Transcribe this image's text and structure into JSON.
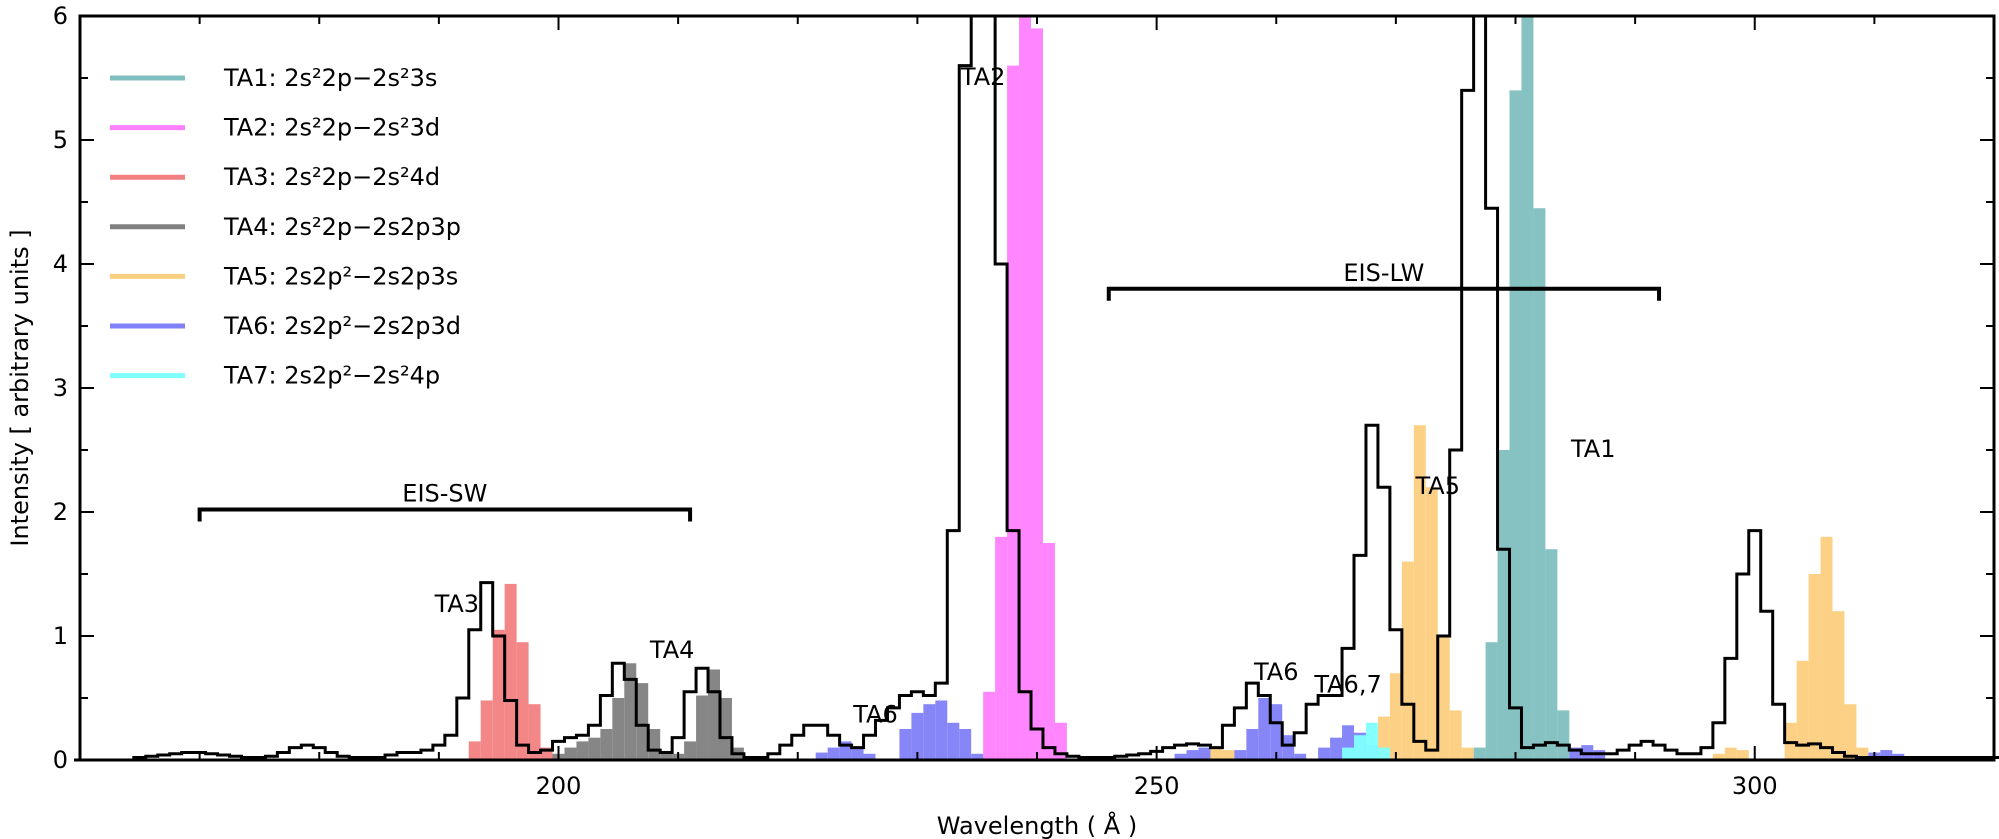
{
  "chart_data": {
    "type": "area",
    "xlabel": "Wavelength ( Å )",
    "ylabel": "Intensity [ arbitrary units ]",
    "xlim": [
      160,
      320
    ],
    "ylim": [
      0,
      6
    ],
    "x_ticks": [
      200,
      250,
      300
    ],
    "y_ticks": [
      0,
      1,
      2,
      3,
      4,
      5,
      6
    ],
    "grid": false,
    "legend_position": "top-left",
    "step_width": 1,
    "series": [
      {
        "name": "TA1: 2s²2p−2s²3s",
        "color": "#80bfbf",
        "points": [
          [
            277,
            0.1
          ],
          [
            278,
            0.95
          ],
          [
            279,
            2.5
          ],
          [
            280,
            5.4
          ],
          [
            281,
            6.0
          ],
          [
            282,
            4.45
          ],
          [
            283,
            1.7
          ],
          [
            284,
            0.4
          ]
        ]
      },
      {
        "name": "TA2: 2s²2p−2s²3d",
        "color": "#ff80ff",
        "points": [
          [
            236,
            0.55
          ],
          [
            237,
            1.8
          ],
          [
            238,
            5.6
          ],
          [
            239,
            6.0
          ],
          [
            240,
            5.9
          ],
          [
            241,
            1.75
          ],
          [
            242,
            0.3
          ]
        ]
      },
      {
        "name": "TA3: 2s²2p−2s²4d",
        "color": "#f28080",
        "points": [
          [
            193,
            0.15
          ],
          [
            194,
            0.48
          ],
          [
            195,
            1.05
          ],
          [
            196,
            1.42
          ],
          [
            197,
            0.95
          ],
          [
            198,
            0.45
          ],
          [
            199,
            0.1
          ]
        ]
      },
      {
        "name": "TA4: 2s²2p−2s2p3p",
        "color": "#808080",
        "points": [
          [
            200,
            0.05
          ],
          [
            201,
            0.1
          ],
          [
            202,
            0.15
          ],
          [
            203,
            0.18
          ],
          [
            204,
            0.25
          ],
          [
            205,
            0.5
          ],
          [
            206,
            0.78
          ],
          [
            207,
            0.62
          ],
          [
            208,
            0.25
          ],
          [
            209,
            0.05
          ],
          [
            210,
            0.05
          ],
          [
            211,
            0.15
          ],
          [
            212,
            0.52
          ],
          [
            213,
            0.73
          ],
          [
            214,
            0.5
          ],
          [
            215,
            0.1
          ]
        ]
      },
      {
        "name": "TA5: 2s2p²−2s2p3s",
        "color": "#fccf80",
        "points": [
          [
            254,
            0.05
          ],
          [
            255,
            0.1
          ],
          [
            256,
            0.08
          ],
          [
            269,
            0.35
          ],
          [
            270,
            0.7
          ],
          [
            271,
            1.6
          ],
          [
            272,
            2.7
          ],
          [
            273,
            2.2
          ],
          [
            274,
            1.0
          ],
          [
            275,
            0.4
          ],
          [
            276,
            0.1
          ],
          [
            297,
            0.05
          ],
          [
            298,
            0.1
          ],
          [
            299,
            0.08
          ],
          [
            303,
            0.3
          ],
          [
            304,
            0.8
          ],
          [
            305,
            1.5
          ],
          [
            306,
            1.8
          ],
          [
            307,
            1.2
          ],
          [
            308,
            0.45
          ],
          [
            309,
            0.1
          ]
        ]
      },
      {
        "name": "TA6: 2s2p²−2s2p3d",
        "color": "#8080f8",
        "points": [
          [
            222,
            0.06
          ],
          [
            223,
            0.1
          ],
          [
            224,
            0.15
          ],
          [
            225,
            0.1
          ],
          [
            226,
            0.05
          ],
          [
            229,
            0.25
          ],
          [
            230,
            0.38
          ],
          [
            231,
            0.45
          ],
          [
            232,
            0.48
          ],
          [
            233,
            0.3
          ],
          [
            234,
            0.25
          ],
          [
            235,
            0.05
          ],
          [
            252,
            0.05
          ],
          [
            253,
            0.08
          ],
          [
            254,
            0.1
          ],
          [
            257,
            0.08
          ],
          [
            258,
            0.25
          ],
          [
            259,
            0.5
          ],
          [
            260,
            0.45
          ],
          [
            261,
            0.2
          ],
          [
            262,
            0.05
          ],
          [
            264,
            0.1
          ],
          [
            265,
            0.18
          ],
          [
            266,
            0.28
          ],
          [
            267,
            0.22
          ],
          [
            268,
            0.12
          ],
          [
            285,
            0.1
          ],
          [
            286,
            0.12
          ],
          [
            287,
            0.08
          ],
          [
            310,
            0.06
          ],
          [
            311,
            0.08
          ],
          [
            312,
            0.05
          ]
        ]
      },
      {
        "name": "TA7: 2s2p²−2s²4p",
        "color": "#80ffff",
        "points": [
          [
            266,
            0.1
          ],
          [
            267,
            0.2
          ],
          [
            268,
            0.3
          ],
          [
            269,
            0.1
          ]
        ]
      }
    ],
    "total_envelope": [
      [
        160,
        0
      ],
      [
        164,
        0
      ],
      [
        165,
        0.02
      ],
      [
        166,
        0.03
      ],
      [
        167,
        0.04
      ],
      [
        168,
        0.05
      ],
      [
        169,
        0.06
      ],
      [
        170,
        0.06
      ],
      [
        171,
        0.05
      ],
      [
        172,
        0.04
      ],
      [
        173,
        0.03
      ],
      [
        174,
        0.02
      ],
      [
        175,
        0.02
      ],
      [
        176,
        0.03
      ],
      [
        177,
        0.06
      ],
      [
        178,
        0.1
      ],
      [
        179,
        0.12
      ],
      [
        180,
        0.1
      ],
      [
        181,
        0.06
      ],
      [
        182,
        0.03
      ],
      [
        183,
        0.02
      ],
      [
        184,
        0.02
      ],
      [
        185,
        0.02
      ],
      [
        186,
        0.04
      ],
      [
        187,
        0.06
      ],
      [
        188,
        0.06
      ],
      [
        189,
        0.08
      ],
      [
        190,
        0.12
      ],
      [
        191,
        0.2
      ],
      [
        192,
        0.5
      ],
      [
        193,
        1.05
      ],
      [
        194,
        1.43
      ],
      [
        195,
        1.0
      ],
      [
        196,
        0.48
      ],
      [
        197,
        0.12
      ],
      [
        198,
        0.06
      ],
      [
        199,
        0.08
      ],
      [
        200,
        0.15
      ],
      [
        201,
        0.18
      ],
      [
        202,
        0.2
      ],
      [
        203,
        0.28
      ],
      [
        204,
        0.52
      ],
      [
        205,
        0.78
      ],
      [
        206,
        0.65
      ],
      [
        207,
        0.28
      ],
      [
        208,
        0.08
      ],
      [
        209,
        0.06
      ],
      [
        210,
        0.18
      ],
      [
        211,
        0.55
      ],
      [
        212,
        0.74
      ],
      [
        213,
        0.55
      ],
      [
        214,
        0.18
      ],
      [
        215,
        0.05
      ],
      [
        216,
        0.02
      ],
      [
        217,
        0.02
      ],
      [
        218,
        0.05
      ],
      [
        219,
        0.12
      ],
      [
        220,
        0.2
      ],
      [
        221,
        0.28
      ],
      [
        222,
        0.28
      ],
      [
        223,
        0.2
      ],
      [
        224,
        0.12
      ],
      [
        225,
        0.1
      ],
      [
        226,
        0.2
      ],
      [
        227,
        0.32
      ],
      [
        228,
        0.42
      ],
      [
        229,
        0.52
      ],
      [
        230,
        0.55
      ],
      [
        231,
        0.52
      ],
      [
        232,
        0.62
      ],
      [
        233,
        1.85
      ],
      [
        234,
        5.6
      ],
      [
        235,
        6.0
      ],
      [
        236,
        6.0
      ],
      [
        237,
        4.0
      ],
      [
        238,
        1.85
      ],
      [
        239,
        0.55
      ],
      [
        240,
        0.25
      ],
      [
        241,
        0.1
      ],
      [
        242,
        0.05
      ],
      [
        243,
        0.03
      ],
      [
        244,
        0.02
      ],
      [
        245,
        0.02
      ],
      [
        246,
        0.02
      ],
      [
        247,
        0.03
      ],
      [
        248,
        0.04
      ],
      [
        249,
        0.05
      ],
      [
        250,
        0.07
      ],
      [
        251,
        0.1
      ],
      [
        252,
        0.12
      ],
      [
        253,
        0.13
      ],
      [
        254,
        0.12
      ],
      [
        255,
        0.1
      ],
      [
        256,
        0.28
      ],
      [
        257,
        0.42
      ],
      [
        258,
        0.62
      ],
      [
        259,
        0.52
      ],
      [
        260,
        0.3
      ],
      [
        261,
        0.12
      ],
      [
        262,
        0.22
      ],
      [
        263,
        0.45
      ],
      [
        264,
        0.52
      ],
      [
        265,
        0.52
      ],
      [
        266,
        0.9
      ],
      [
        267,
        1.65
      ],
      [
        268,
        2.7
      ],
      [
        269,
        2.2
      ],
      [
        270,
        1.05
      ],
      [
        271,
        0.45
      ],
      [
        272,
        0.15
      ],
      [
        273,
        0.08
      ],
      [
        274,
        1.0
      ],
      [
        275,
        2.5
      ],
      [
        276,
        5.4
      ],
      [
        277,
        6.0
      ],
      [
        278,
        4.45
      ],
      [
        279,
        1.7
      ],
      [
        280,
        0.42
      ],
      [
        281,
        0.1
      ],
      [
        282,
        0.12
      ],
      [
        283,
        0.14
      ],
      [
        284,
        0.12
      ],
      [
        285,
        0.08
      ],
      [
        286,
        0.05
      ],
      [
        287,
        0.05
      ],
      [
        288,
        0.05
      ],
      [
        289,
        0.08
      ],
      [
        290,
        0.12
      ],
      [
        291,
        0.15
      ],
      [
        292,
        0.12
      ],
      [
        293,
        0.08
      ],
      [
        294,
        0.05
      ],
      [
        295,
        0.05
      ],
      [
        296,
        0.1
      ],
      [
        297,
        0.3
      ],
      [
        298,
        0.82
      ],
      [
        299,
        1.5
      ],
      [
        300,
        1.85
      ],
      [
        301,
        1.2
      ],
      [
        302,
        0.45
      ],
      [
        303,
        0.14
      ],
      [
        304,
        0.12
      ],
      [
        305,
        0.13
      ],
      [
        306,
        0.1
      ],
      [
        307,
        0.06
      ],
      [
        308,
        0.03
      ],
      [
        309,
        0.02
      ],
      [
        310,
        0.02
      ],
      [
        320,
        0.02
      ]
    ],
    "brackets": [
      {
        "label": "EIS-SW",
        "x0": 170,
        "x1": 211,
        "y": 2.02
      },
      {
        "label": "EIS-LW",
        "x0": 246,
        "x1": 292,
        "y": 3.8
      }
    ],
    "annotations": [
      {
        "text": "TA2",
        "x": 235.5,
        "y": 5.5
      },
      {
        "text": "TA1",
        "x": 286.5,
        "y": 2.5
      },
      {
        "text": "TA5",
        "x": 273.5,
        "y": 2.2
      },
      {
        "text": "TA3",
        "x": 191.5,
        "y": 1.25
      },
      {
        "text": "TA4",
        "x": 209.5,
        "y": 0.88
      },
      {
        "text": "TA6",
        "x": 226.5,
        "y": 0.36
      },
      {
        "text": "TA6",
        "x": 260,
        "y": 0.7
      },
      {
        "text": "TA6,7",
        "x": 266,
        "y": 0.6
      }
    ]
  }
}
